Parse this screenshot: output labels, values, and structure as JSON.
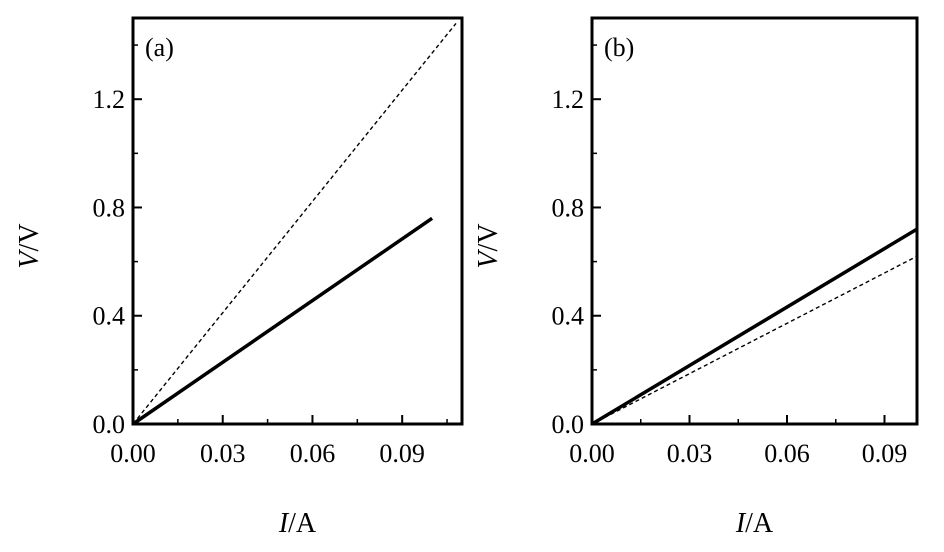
{
  "chart_data": [
    {
      "type": "line",
      "panel_label": "(a)",
      "xlabel_italic": "I",
      "xlabel_unit": "/A",
      "ylabel_italic": "V",
      "ylabel_unit": "/V",
      "xlim": [
        0.0,
        0.11
      ],
      "ylim": [
        0.0,
        1.5
      ],
      "xticks": [
        0.0,
        0.03,
        0.06,
        0.09
      ],
      "xtick_labels": [
        "0.00",
        "0.03",
        "0.06",
        "0.09"
      ],
      "yticks": [
        0.0,
        0.4,
        0.8,
        1.2
      ],
      "ytick_labels": [
        "0.0",
        "0.4",
        "0.8",
        "1.2"
      ],
      "grid": false,
      "legend": "none",
      "series": [
        {
          "style": "solid",
          "x": [
            0.0,
            0.1
          ],
          "y": [
            0.0,
            0.76
          ]
        },
        {
          "style": "dashed",
          "x": [
            0.0,
            0.108
          ],
          "y": [
            0.0,
            1.48
          ]
        }
      ]
    },
    {
      "type": "line",
      "panel_label": "(b)",
      "xlabel_italic": "I",
      "xlabel_unit": "/A",
      "ylabel_italic": "V",
      "ylabel_unit": "/V",
      "xlim": [
        0.0,
        0.1
      ],
      "ylim": [
        0.0,
        1.5
      ],
      "xticks": [
        0.0,
        0.03,
        0.06,
        0.09
      ],
      "xtick_labels": [
        "0.00",
        "0.03",
        "0.06",
        "0.09"
      ],
      "yticks": [
        0.0,
        0.4,
        0.8,
        1.2
      ],
      "ytick_labels": [
        "0.0",
        "0.4",
        "0.8",
        "1.2"
      ],
      "grid": false,
      "legend": "none",
      "series": [
        {
          "style": "solid",
          "x": [
            0.0,
            0.1
          ],
          "y": [
            0.0,
            0.72
          ]
        },
        {
          "style": "dashed",
          "x": [
            0.0,
            0.1
          ],
          "y": [
            0.0,
            0.62
          ]
        }
      ]
    }
  ]
}
